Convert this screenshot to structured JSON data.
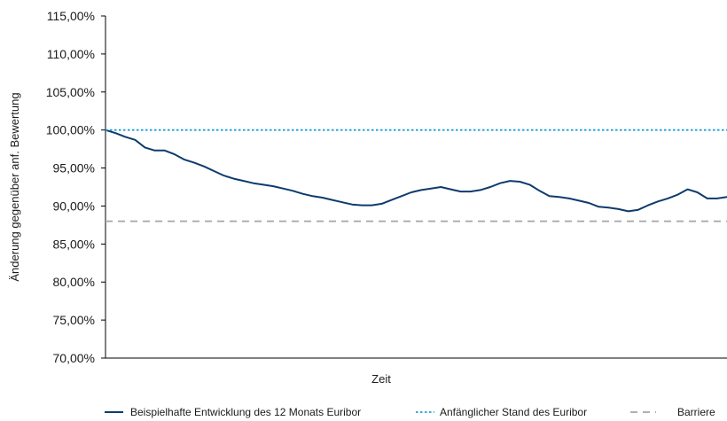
{
  "chart_data": {
    "type": "line",
    "xlabel": "Zeit",
    "ylabel": "Änderung gegenüber anf. Bewertung",
    "ylim": [
      70,
      115
    ],
    "yticks": [
      {
        "value": 115,
        "label": "115,00%"
      },
      {
        "value": 110,
        "label": "110,00%"
      },
      {
        "value": 105,
        "label": "105,00%"
      },
      {
        "value": 100,
        "label": "100,00%"
      },
      {
        "value": 95,
        "label": "95,00%"
      },
      {
        "value": 90,
        "label": "90,00%"
      },
      {
        "value": 85,
        "label": "85,00%"
      },
      {
        "value": 80,
        "label": "80,00%"
      },
      {
        "value": 75,
        "label": "75,00%"
      },
      {
        "value": 70,
        "label": "70,00%"
      }
    ],
    "grid": false,
    "legend_position": "bottom",
    "series": [
      {
        "name": "Beispielhafte Entwicklung des 12 Monats Euribor",
        "style": "solid",
        "color": "#0d3b6e",
        "values": [
          100.0,
          99.6,
          99.1,
          98.7,
          97.7,
          97.3,
          97.3,
          96.8,
          96.1,
          95.7,
          95.2,
          94.6,
          94.0,
          93.6,
          93.3,
          93.0,
          92.8,
          92.6,
          92.3,
          92.0,
          91.6,
          91.3,
          91.1,
          90.8,
          90.5,
          90.2,
          90.1,
          90.1,
          90.3,
          90.8,
          91.3,
          91.8,
          92.1,
          92.3,
          92.5,
          92.2,
          91.9,
          91.9,
          92.1,
          92.5,
          93.0,
          93.3,
          93.2,
          92.8,
          92.0,
          91.3,
          91.2,
          91.0,
          90.7,
          90.4,
          89.9,
          89.8,
          89.6,
          89.3,
          89.5,
          90.1,
          90.6,
          91.0,
          91.5,
          92.2,
          91.8,
          91.0,
          91.0,
          91.2
        ]
      },
      {
        "name": "Anfänglicher Stand des Euribor",
        "style": "dotted",
        "color": "#1e9fd8",
        "values": [
          100,
          100
        ]
      },
      {
        "name": "Barriere",
        "style": "dashed",
        "color": "#a6a6a6",
        "values": [
          88,
          88
        ]
      }
    ]
  }
}
